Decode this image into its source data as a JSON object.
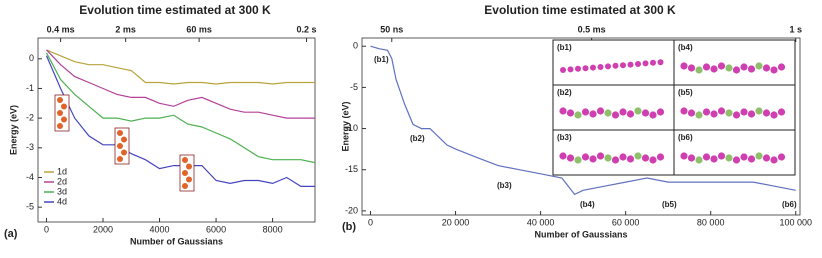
{
  "chart_data": [
    {
      "type": "line",
      "title": "Evolution time estimated at 300 K",
      "xlabel": "Number of Gaussians",
      "ylabel": "Energy (eV)",
      "panel_label": "(a)",
      "x": [
        0,
        500,
        1000,
        1500,
        2000,
        2500,
        3000,
        3500,
        4000,
        4500,
        5000,
        5500,
        6000,
        6500,
        7000,
        7500,
        8000,
        8500,
        9000,
        9500
      ],
      "series": [
        {
          "name": "1d",
          "color": "#b8a43c",
          "values": [
            0.3,
            0.1,
            -0.1,
            -0.2,
            -0.2,
            -0.3,
            -0.4,
            -0.8,
            -0.8,
            -0.85,
            -0.8,
            -0.8,
            -0.85,
            -0.8,
            -0.8,
            -0.8,
            -0.85,
            -0.8,
            -0.8,
            -0.8
          ]
        },
        {
          "name": "2d",
          "color": "#b5409a",
          "values": [
            0.3,
            -0.2,
            -0.6,
            -0.8,
            -1.0,
            -1.2,
            -1.3,
            -1.3,
            -1.5,
            -1.6,
            -1.4,
            -1.3,
            -1.5,
            -1.7,
            -1.8,
            -1.8,
            -1.9,
            -2.0,
            -2.0,
            -2.0
          ]
        },
        {
          "name": "3d",
          "color": "#4cb050",
          "values": [
            0.2,
            -0.7,
            -1.2,
            -1.6,
            -2.0,
            -2.0,
            -2.1,
            -2.0,
            -2.0,
            -1.9,
            -2.2,
            -2.3,
            -2.5,
            -2.7,
            -3.0,
            -3.3,
            -3.4,
            -3.4,
            -3.4,
            -3.5
          ]
        },
        {
          "name": "4d",
          "color": "#4545c0",
          "values": [
            0.1,
            -1.0,
            -2.0,
            -2.6,
            -2.9,
            -2.9,
            -3.2,
            -3.4,
            -3.7,
            -3.6,
            -3.6,
            -3.6,
            -4.1,
            -4.2,
            -4.1,
            -4.1,
            -4.2,
            -4.0,
            -4.3,
            -4.3
          ]
        }
      ],
      "xlim": [
        -300,
        9500
      ],
      "ylim": [
        -5.5,
        0.7
      ],
      "xticks": [
        0,
        2000,
        4000,
        6000,
        8000
      ],
      "yticks": [
        0,
        -1,
        -2,
        -3,
        -4,
        -5
      ],
      "x2ticks": [
        {
          "value": 500,
          "label": "0.4 ms"
        },
        {
          "value": 2800,
          "label": "2 ms"
        },
        {
          "value": 5400,
          "label": "60 ms"
        },
        {
          "value": 9200,
          "label": "0.2 s"
        }
      ]
    },
    {
      "type": "line",
      "title": "Evolution time estimated at 300 K",
      "xlabel": "Number of Gaussians",
      "ylabel": "Energy (eV)",
      "panel_label": "(b)",
      "x": [
        0,
        2000,
        4000,
        5000,
        6000,
        8000,
        10000,
        12000,
        14000,
        16000,
        18000,
        20000,
        25000,
        30000,
        35000,
        40000,
        45000,
        48000,
        50000,
        55000,
        60000,
        65000,
        70000,
        75000,
        80000,
        85000,
        90000,
        95000,
        100000
      ],
      "series": [
        {
          "name": null,
          "color": "#6070c0",
          "values": [
            0,
            -0.3,
            -0.5,
            -1.5,
            -4,
            -7,
            -9.5,
            -10,
            -10,
            -11,
            -12,
            -12.5,
            -13.5,
            -14.5,
            -15,
            -15.5,
            -16,
            -18,
            -17.5,
            -17,
            -16.5,
            -16,
            -16.5,
            -16.5,
            -16.5,
            -16.5,
            -16.5,
            -17,
            -17.5
          ]
        }
      ],
      "xlim": [
        -2000,
        101000
      ],
      "ylim": [
        -20.5,
        1
      ],
      "xticks": [
        0,
        {
          "value": 20000,
          "label": "20 000"
        },
        {
          "value": 40000,
          "label": "40 000"
        },
        {
          "value": 60000,
          "label": "60 000"
        },
        {
          "value": 80000,
          "label": "80 000"
        },
        {
          "value": 100000,
          "label": "100 000"
        }
      ],
      "yticks": [
        0,
        -5,
        -10,
        -15,
        -20
      ],
      "x2ticks": [
        {
          "value": 5000,
          "label": "50 ns"
        },
        {
          "value": 52000,
          "label": "0.5 ms"
        },
        {
          "value": 100000,
          "label": "1 s"
        }
      ],
      "annotations": [
        "(b1)",
        "(b2)",
        "(b3)",
        "(b4)",
        "(b5)",
        "(b6)"
      ],
      "inset_labels": [
        "(b1)",
        "(b4)",
        "(b2)",
        "(b5)",
        "(b3)",
        "(b6)"
      ]
    }
  ]
}
